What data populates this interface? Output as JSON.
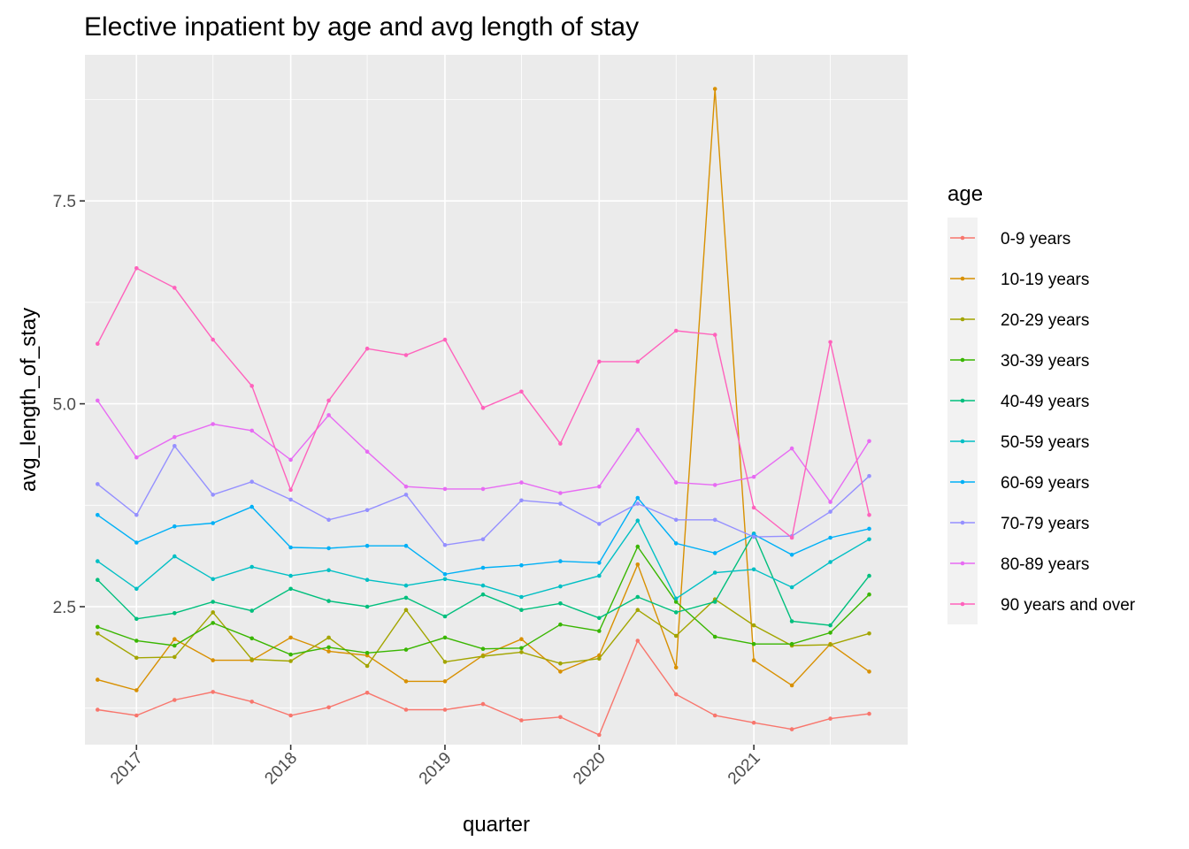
{
  "chart_data": {
    "type": "line",
    "title": "Elective inpatient by age and avg length of stay",
    "xlabel": "quarter",
    "ylabel": "avg_length_of_stay",
    "x_ticks": [
      "2017",
      "2018",
      "2019",
      "2020",
      "2021"
    ],
    "y_ticks": [
      "2.5",
      "5.0",
      "7.5"
    ],
    "y_tick_values": [
      2.5,
      5.0,
      7.5
    ],
    "xlim": [
      "2016-09-01",
      "2021-12-31"
    ],
    "ylim": [
      0.8,
      9.3
    ],
    "grid": true,
    "legend": {
      "title": "age",
      "position": "right"
    },
    "x": [
      "2016-10-01",
      "2017-01-01",
      "2017-04-01",
      "2017-07-01",
      "2017-10-01",
      "2018-01-01",
      "2018-04-01",
      "2018-07-01",
      "2018-10-01",
      "2019-01-01",
      "2019-04-01",
      "2019-07-01",
      "2019-10-01",
      "2020-01-01",
      "2020-04-01",
      "2020-07-01",
      "2020-10-01",
      "2021-01-01",
      "2021-04-01",
      "2021-07-01",
      "2021-10-01"
    ],
    "series": [
      {
        "name": "0-9 years",
        "color": "#F8766D",
        "values": [
          1.23,
          1.16,
          1.35,
          1.45,
          1.33,
          1.16,
          1.26,
          1.44,
          1.23,
          1.23,
          1.3,
          1.1,
          1.14,
          0.92,
          2.08,
          1.42,
          1.16,
          1.07,
          0.99,
          1.12,
          1.18
        ]
      },
      {
        "name": "10-19 years",
        "color": "#D89000",
        "values": [
          1.6,
          1.47,
          2.1,
          1.84,
          1.84,
          2.12,
          1.95,
          1.9,
          1.58,
          1.58,
          1.9,
          2.1,
          1.7,
          1.9,
          3.02,
          1.75,
          8.88,
          1.84,
          1.53,
          2.04,
          1.7
        ]
      },
      {
        "name": "20-29 years",
        "color": "#A3A500",
        "values": [
          2.17,
          1.87,
          1.88,
          2.43,
          1.85,
          1.83,
          2.12,
          1.77,
          2.46,
          1.82,
          1.89,
          1.94,
          1.8,
          1.86,
          2.46,
          2.14,
          2.59,
          2.27,
          2.02,
          2.03,
          2.17
        ]
      },
      {
        "name": "30-39 years",
        "color": "#39B600",
        "values": [
          2.25,
          2.08,
          2.02,
          2.3,
          2.11,
          1.91,
          2.0,
          1.93,
          1.97,
          2.12,
          1.98,
          1.99,
          2.28,
          2.2,
          3.24,
          2.56,
          2.13,
          2.04,
          2.04,
          2.18,
          2.65
        ]
      },
      {
        "name": "40-49 years",
        "color": "#00BF7D",
        "values": [
          2.83,
          2.35,
          2.42,
          2.56,
          2.45,
          2.72,
          2.57,
          2.5,
          2.61,
          2.38,
          2.65,
          2.46,
          2.54,
          2.36,
          2.62,
          2.43,
          2.56,
          3.4,
          2.32,
          2.27,
          2.88
        ]
      },
      {
        "name": "50-59 years",
        "color": "#00BFC4",
        "values": [
          3.06,
          2.72,
          3.12,
          2.84,
          2.99,
          2.88,
          2.95,
          2.83,
          2.76,
          2.84,
          2.76,
          2.62,
          2.75,
          2.88,
          3.56,
          2.6,
          2.92,
          2.96,
          2.74,
          3.05,
          3.33
        ]
      },
      {
        "name": "60-69 years",
        "color": "#00B0F6",
        "values": [
          3.63,
          3.29,
          3.49,
          3.53,
          3.73,
          3.23,
          3.22,
          3.25,
          3.25,
          2.9,
          2.98,
          3.01,
          3.06,
          3.04,
          3.84,
          3.28,
          3.16,
          3.39,
          3.14,
          3.35,
          3.46
        ]
      },
      {
        "name": "70-79 years",
        "color": "#9590FF",
        "values": [
          4.01,
          3.63,
          4.48,
          3.88,
          4.04,
          3.82,
          3.57,
          3.69,
          3.88,
          3.26,
          3.33,
          3.81,
          3.77,
          3.52,
          3.77,
          3.57,
          3.57,
          3.36,
          3.37,
          3.67,
          4.11
        ]
      },
      {
        "name": "80-89 years",
        "color": "#E76BF3",
        "values": [
          5.04,
          4.34,
          4.59,
          4.75,
          4.67,
          4.31,
          4.86,
          4.41,
          3.98,
          3.95,
          3.95,
          4.03,
          3.9,
          3.98,
          4.68,
          4.03,
          4.0,
          4.1,
          4.45,
          3.79,
          4.54
        ]
      },
      {
        "name": "90 years and over",
        "color": "#FF62BC",
        "values": [
          5.74,
          6.67,
          6.43,
          5.79,
          5.22,
          3.94,
          5.04,
          5.68,
          5.6,
          5.79,
          4.95,
          5.15,
          4.51,
          5.52,
          5.52,
          5.9,
          5.85,
          3.72,
          3.35,
          5.76,
          3.63
        ]
      }
    ]
  }
}
